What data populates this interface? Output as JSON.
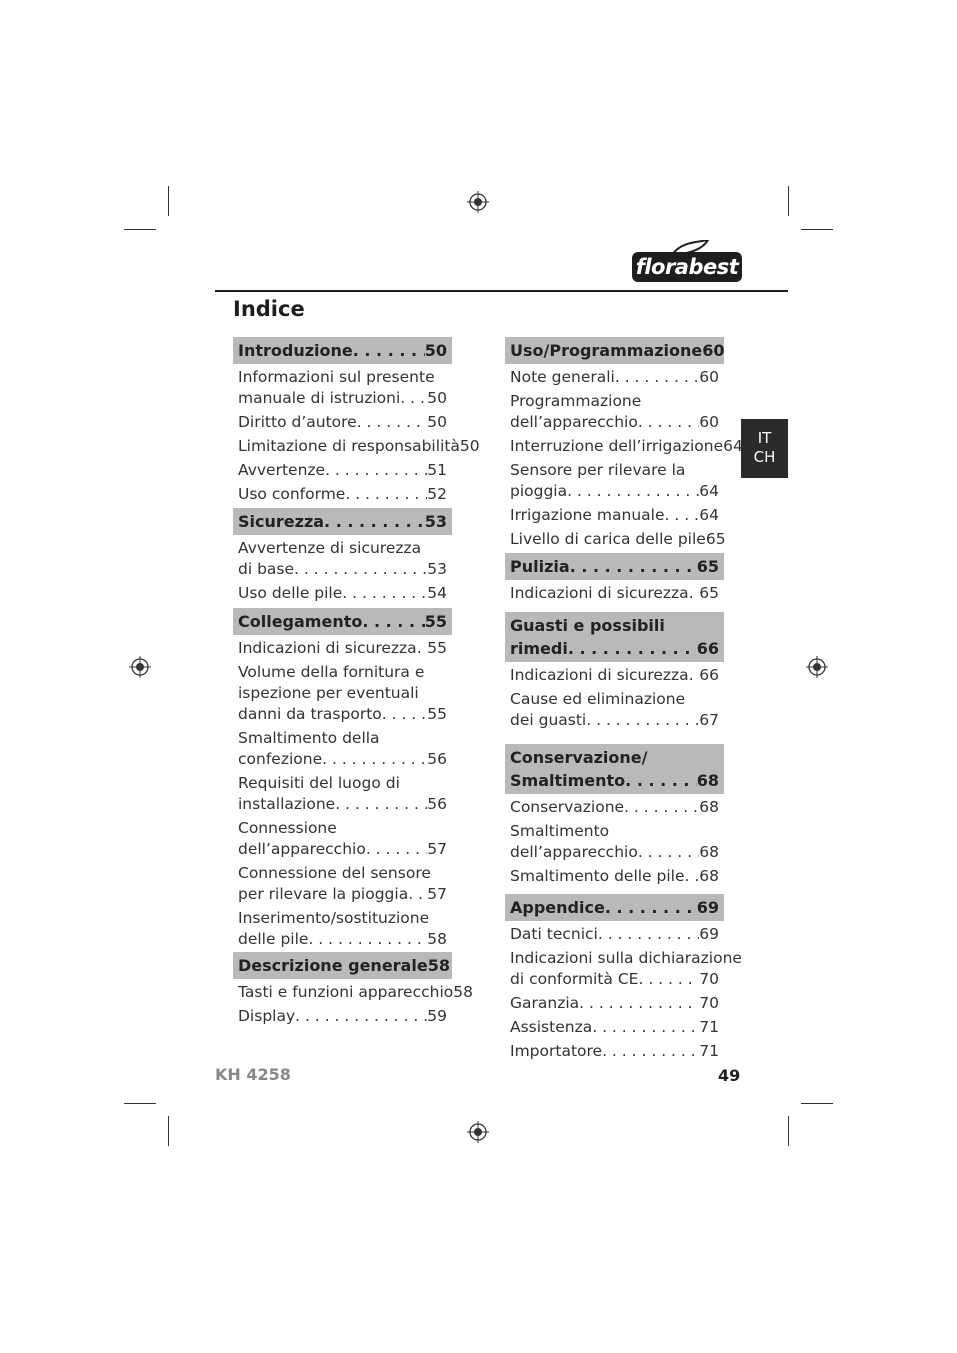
{
  "brand": "florabest",
  "title": "Indice",
  "lang_tab": [
    "IT",
    "CH"
  ],
  "footer": {
    "model": "KH 4258",
    "page": "49"
  },
  "columns": [
    [
      {
        "head": [
          "Introduzione"
        ],
        "page": "50",
        "items": [
          {
            "lines": [
              "Informazioni sul presente",
              "manuale di istruzioni"
            ],
            "page": "50"
          },
          {
            "lines": [
              "Diritto d’autore"
            ],
            "page": "50"
          },
          {
            "lines": [
              "Limitazione di responsabilità"
            ],
            "page": "50"
          },
          {
            "lines": [
              "Avvertenze"
            ],
            "page": "51"
          },
          {
            "lines": [
              "Uso conforme"
            ],
            "page": "52"
          }
        ]
      },
      {
        "head": [
          "Sicurezza"
        ],
        "page": "53",
        "items": [
          {
            "lines": [
              "Avvertenze di sicurezza",
              "di base"
            ],
            "page": "53"
          },
          {
            "lines": [
              "Uso delle pile"
            ],
            "page": "54"
          }
        ]
      },
      {
        "head": [
          "Collegamento"
        ],
        "page": "55",
        "items": [
          {
            "lines": [
              "Indicazioni di sicurezza"
            ],
            "page": "55"
          },
          {
            "lines": [
              "Volume della fornitura e",
              "ispezione per eventuali",
              "danni da trasporto"
            ],
            "page": "55"
          },
          {
            "lines": [
              "Smaltimento della",
              "confezione"
            ],
            "page": "56"
          },
          {
            "lines": [
              "Requisiti del luogo di",
              "installazione"
            ],
            "page": "56"
          },
          {
            "lines": [
              "Connessione",
              "dell’apparecchio"
            ],
            "page": "57"
          },
          {
            "lines": [
              "Connessione del sensore",
              "per rilevare la pioggia"
            ],
            "page": "57"
          },
          {
            "lines": [
              "Inserimento/sostituzione",
              "delle pile"
            ],
            "page": "58"
          }
        ]
      },
      {
        "head": [
          "Descrizione generale"
        ],
        "page": "58",
        "items": [
          {
            "lines": [
              "Tasti e funzioni apparecchio"
            ],
            "page": "58"
          },
          {
            "lines": [
              "Display"
            ],
            "page": "59"
          }
        ]
      }
    ],
    [
      {
        "head": [
          "Uso/Programmazione"
        ],
        "page": "60",
        "items": [
          {
            "lines": [
              "Note generali"
            ],
            "page": "60"
          },
          {
            "lines": [
              "Programmazione",
              "dell’apparecchio"
            ],
            "page": "60"
          },
          {
            "lines": [
              "Interruzione dell’irrigazione"
            ],
            "page": "64"
          },
          {
            "lines": [
              "Sensore per rilevare la",
              "pioggia"
            ],
            "page": "64"
          },
          {
            "lines": [
              "Irrigazione manuale"
            ],
            "page": "64"
          },
          {
            "lines": [
              "Livello di carica delle pile"
            ],
            "page": "65"
          }
        ]
      },
      {
        "head": [
          "Pulizia"
        ],
        "page": "65",
        "items": [
          {
            "lines": [
              "Indicazioni di sicurezza"
            ],
            "page": "65"
          }
        ]
      },
      {
        "head": [
          "Guasti e possibili",
          "rimedi"
        ],
        "page": "66",
        "items": [
          {
            "lines": [
              "Indicazioni di sicurezza"
            ],
            "page": "66"
          },
          {
            "lines": [
              "Cause ed eliminazione",
              "dei guasti"
            ],
            "page": "67"
          }
        ]
      },
      {
        "head": [
          "Conservazione/",
          "Smaltimento"
        ],
        "page": "68",
        "items": [
          {
            "lines": [
              "Conservazione"
            ],
            "page": "68"
          },
          {
            "lines": [
              "Smaltimento",
              "dell’apparecchio"
            ],
            "page": "68"
          },
          {
            "lines": [
              "Smaltimento delle pile"
            ],
            "page": "68"
          }
        ]
      },
      {
        "head": [
          "Appendice"
        ],
        "page": "69",
        "items": [
          {
            "lines": [
              "Dati tecnici"
            ],
            "page": "69"
          },
          {
            "lines": [
              "Indicazioni sulla dichiarazione",
              "di conformità CE"
            ],
            "page": "70"
          },
          {
            "lines": [
              "Garanzia"
            ],
            "page": "70"
          },
          {
            "lines": [
              "Assistenza"
            ],
            "page": "71"
          },
          {
            "lines": [
              "Importatore"
            ],
            "page": "71"
          }
        ]
      }
    ]
  ]
}
